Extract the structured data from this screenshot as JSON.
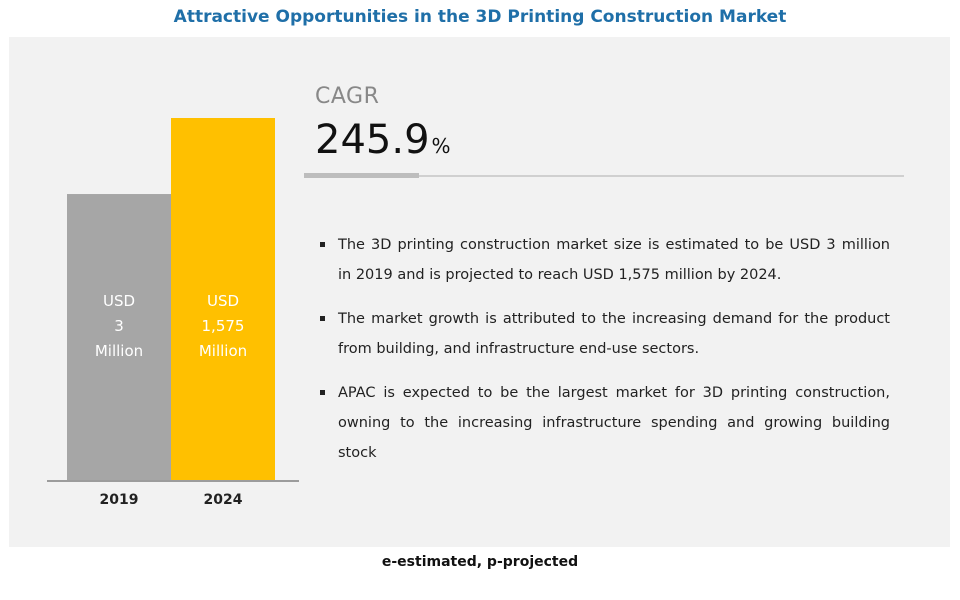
{
  "title": "Attractive Opportunities in the 3D Printing Construction Market",
  "footnote": "e-estimated, p-projected",
  "cagr": {
    "label": "CAGR",
    "value": "245.9",
    "unit": "%"
  },
  "bullets": [
    "The 3D printing construction market size is estimated to be USD 3 million in 2019 and is projected to reach USD 1,575 million by 2024.",
    "The market growth is attributed to the increasing demand for the product from building, and infrastructure end-use sectors.",
    "APAC is expected to be the largest market for 3D printing construction, owning to the increasing infrastructure spending and growing building stock"
  ],
  "chart_data": {
    "type": "bar",
    "categories": [
      "2019",
      "2024"
    ],
    "values": [
      3,
      1575
    ],
    "value_labels": [
      [
        "USD",
        "3",
        "Million"
      ],
      [
        "USD",
        "1,575",
        "Million"
      ]
    ],
    "colors": [
      "#a6a6a6",
      "#ffc000"
    ],
    "note": "Bar heights are illustrative (not to scale) in the original graphic",
    "relative_heights": [
      0.79,
      1.0
    ]
  }
}
